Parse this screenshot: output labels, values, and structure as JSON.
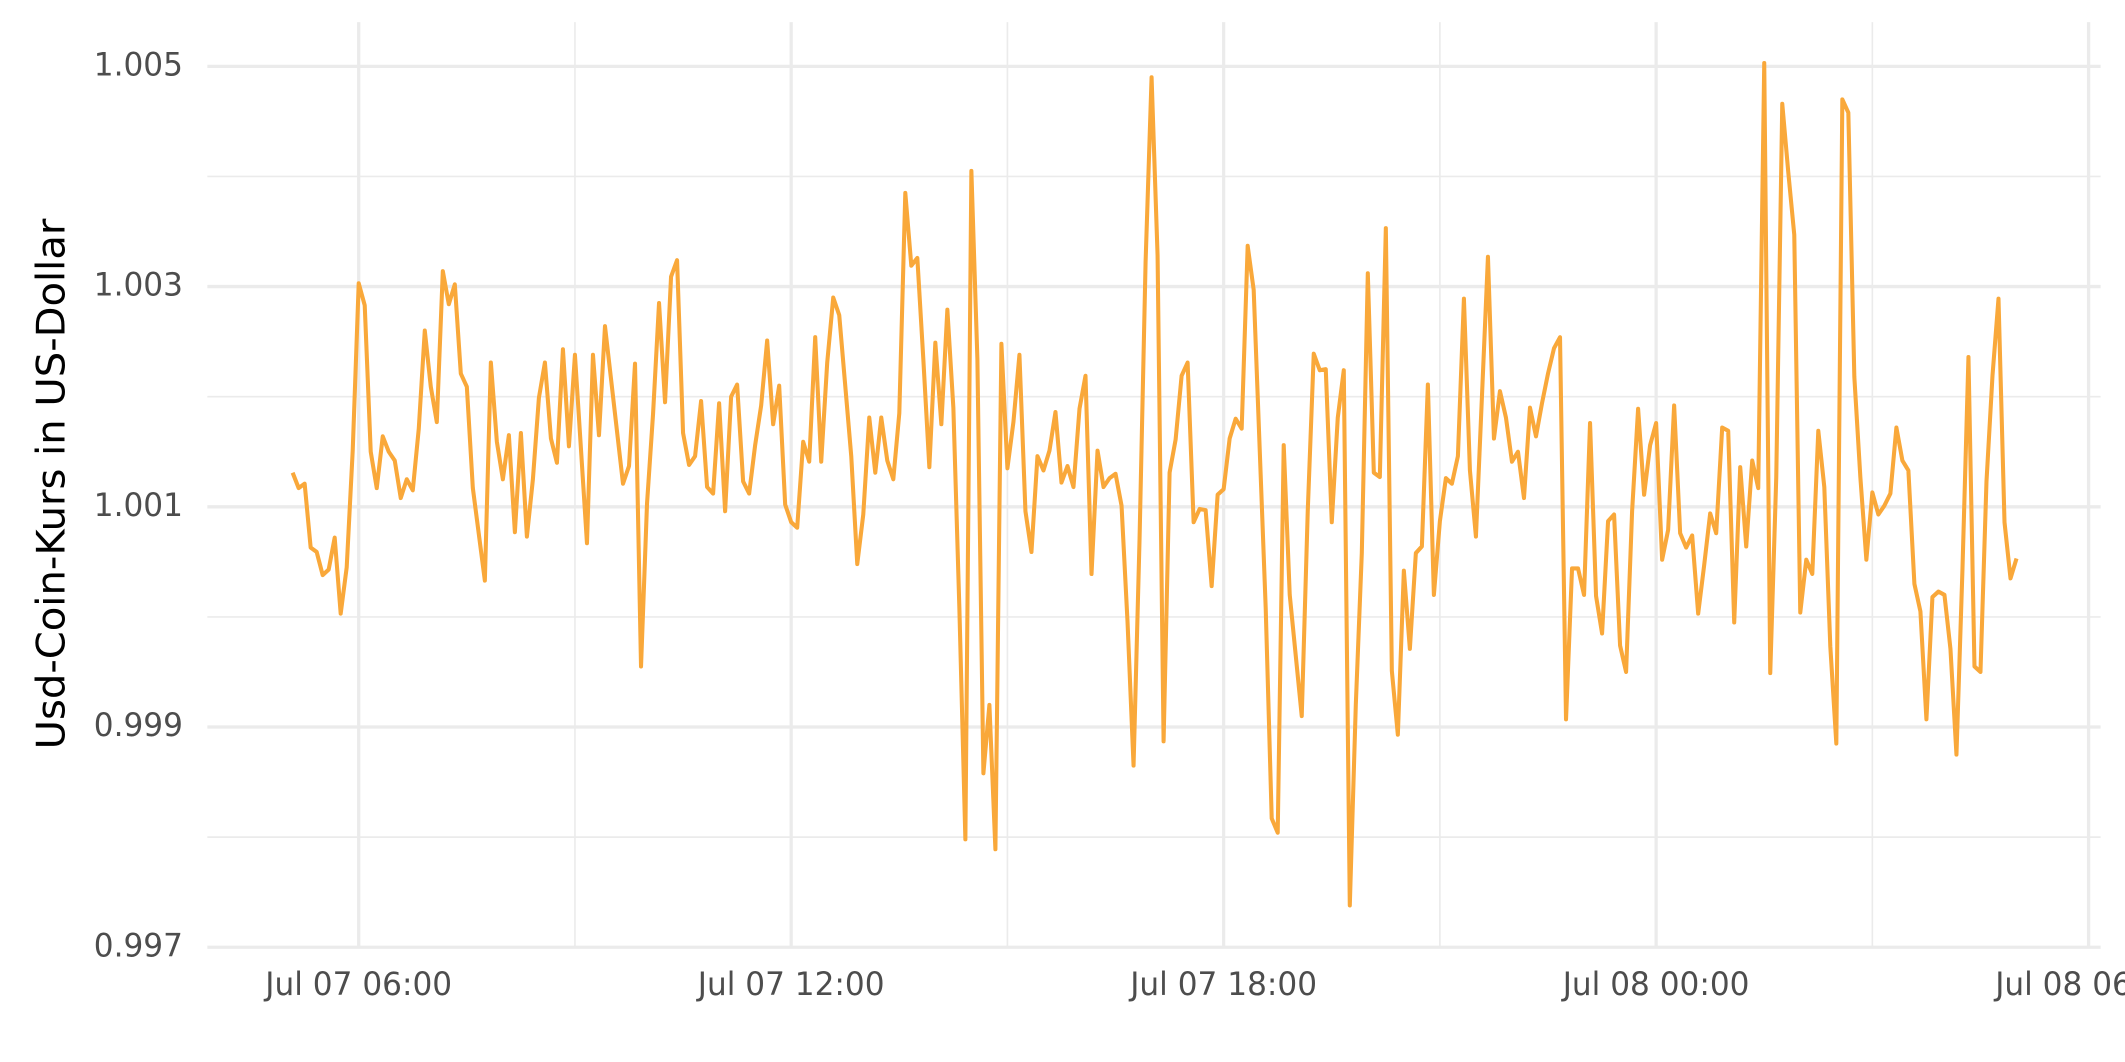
{
  "chart_data": {
    "type": "line",
    "y_label": "Usd-Coin-Kurs in US-Dollar",
    "color": "#f9a83a",
    "grid": true,
    "xlim": [
      "Jul 07 03:54",
      "Jul 08 06:10"
    ],
    "xticks": [
      "Jul 07 06:00",
      "Jul 07 12:00",
      "Jul 07 18:00",
      "Jul 08 00:00",
      "Jul 08 06:00"
    ],
    "ylim": [
      0.997,
      1.005
    ],
    "yticks": [
      0.997,
      0.999,
      1.001,
      1.003,
      1.005
    ],
    "x": [
      "Jul 07 05:05",
      "Jul 07 05:10",
      "Jul 07 05:15",
      "Jul 07 05:20",
      "Jul 07 05:25",
      "Jul 07 05:30",
      "Jul 07 05:35",
      "Jul 07 05:40",
      "Jul 07 05:45",
      "Jul 07 05:50",
      "Jul 07 05:55",
      "Jul 07 06:00",
      "Jul 07 06:05",
      "Jul 07 06:10",
      "Jul 07 06:15",
      "Jul 07 06:20",
      "Jul 07 06:25",
      "Jul 07 06:30",
      "Jul 07 06:35",
      "Jul 07 06:40",
      "Jul 07 06:45",
      "Jul 07 06:50",
      "Jul 07 06:55",
      "Jul 07 07:00",
      "Jul 07 07:05",
      "Jul 07 07:10",
      "Jul 07 07:15",
      "Jul 07 07:20",
      "Jul 07 07:25",
      "Jul 07 07:30",
      "Jul 07 07:35",
      "Jul 07 07:45",
      "Jul 07 07:50",
      "Jul 07 07:55",
      "Jul 07 08:00",
      "Jul 07 08:05",
      "Jul 07 08:10",
      "Jul 07 08:15",
      "Jul 07 08:20",
      "Jul 07 08:25",
      "Jul 07 08:30",
      "Jul 07 08:35",
      "Jul 07 08:40",
      "Jul 07 08:45",
      "Jul 07 08:50",
      "Jul 07 08:55",
      "Jul 07 09:00",
      "Jul 07 09:10",
      "Jul 07 09:15",
      "Jul 07 09:20",
      "Jul 07 09:25",
      "Jul 07 09:40",
      "Jul 07 09:45",
      "Jul 07 09:50",
      "Jul 07 09:55",
      "Jul 07 10:00",
      "Jul 07 10:05",
      "Jul 07 10:10",
      "Jul 07 10:15",
      "Jul 07 10:20",
      "Jul 07 10:25",
      "Jul 07 10:30",
      "Jul 07 10:35",
      "Jul 07 10:40",
      "Jul 07 10:45",
      "Jul 07 10:50",
      "Jul 07 10:55",
      "Jul 07 11:00",
      "Jul 07 11:05",
      "Jul 07 11:10",
      "Jul 07 11:15",
      "Jul 07 11:20",
      "Jul 07 11:25",
      "Jul 07 11:30",
      "Jul 07 11:35",
      "Jul 07 11:40",
      "Jul 07 11:45",
      "Jul 07 11:50",
      "Jul 07 11:55",
      "Jul 07 12:00",
      "Jul 07 12:05",
      "Jul 07 12:10",
      "Jul 07 12:15",
      "Jul 07 12:20",
      "Jul 07 12:25",
      "Jul 07 12:30",
      "Jul 07 12:35",
      "Jul 07 12:40",
      "Jul 07 12:50",
      "Jul 07 12:55",
      "Jul 07 13:00",
      "Jul 07 13:05",
      "Jul 07 13:10",
      "Jul 07 13:15",
      "Jul 07 13:20",
      "Jul 07 13:25",
      "Jul 07 13:30",
      "Jul 07 13:35",
      "Jul 07 13:40",
      "Jul 07 13:45",
      "Jul 07 13:50",
      "Jul 07 13:55",
      "Jul 07 14:00",
      "Jul 07 14:05",
      "Jul 07 14:10",
      "Jul 07 14:15",
      "Jul 07 14:20",
      "Jul 07 14:25",
      "Jul 07 14:30",
      "Jul 07 14:35",
      "Jul 07 14:40",
      "Jul 07 14:45",
      "Jul 07 14:50",
      "Jul 07 14:55",
      "Jul 07 15:00",
      "Jul 07 15:05",
      "Jul 07 15:10",
      "Jul 07 15:15",
      "Jul 07 15:20",
      "Jul 07 15:25",
      "Jul 07 15:30",
      "Jul 07 15:35",
      "Jul 07 15:40",
      "Jul 07 15:45",
      "Jul 07 15:50",
      "Jul 07 15:55",
      "Jul 07 16:00",
      "Jul 07 16:05",
      "Jul 07 16:10",
      "Jul 07 16:15",
      "Jul 07 16:20",
      "Jul 07 16:25",
      "Jul 07 16:30",
      "Jul 07 16:35",
      "Jul 07 16:40",
      "Jul 07 16:45",
      "Jul 07 16:50",
      "Jul 07 16:55",
      "Jul 07 17:00",
      "Jul 07 17:05",
      "Jul 07 17:10",
      "Jul 07 17:15",
      "Jul 07 17:20",
      "Jul 07 17:25",
      "Jul 07 17:30",
      "Jul 07 17:35",
      "Jul 07 17:40",
      "Jul 07 17:45",
      "Jul 07 17:50",
      "Jul 07 17:55",
      "Jul 07 18:00",
      "Jul 07 18:05",
      "Jul 07 18:10",
      "Jul 07 18:15",
      "Jul 07 18:20",
      "Jul 07 18:25",
      "Jul 07 18:35",
      "Jul 07 18:40",
      "Jul 07 18:45",
      "Jul 07 18:50",
      "Jul 07 18:55",
      "Jul 07 19:05",
      "Jul 07 19:10",
      "Jul 07 19:15",
      "Jul 07 19:20",
      "Jul 07 19:25",
      "Jul 07 19:30",
      "Jul 07 19:35",
      "Jul 07 19:40",
      "Jul 07 19:45",
      "Jul 07 19:50",
      "Jul 07 19:55",
      "Jul 07 20:00",
      "Jul 07 20:05",
      "Jul 07 20:10",
      "Jul 07 20:15",
      "Jul 07 20:20",
      "Jul 07 20:25",
      "Jul 07 20:30",
      "Jul 07 20:35",
      "Jul 07 20:40",
      "Jul 07 20:45",
      "Jul 07 20:50",
      "Jul 07 20:55",
      "Jul 07 21:00",
      "Jul 07 21:05",
      "Jul 07 21:10",
      "Jul 07 21:15",
      "Jul 07 21:20",
      "Jul 07 21:25",
      "Jul 07 21:30",
      "Jul 07 21:40",
      "Jul 07 21:45",
      "Jul 07 21:50",
      "Jul 07 21:55",
      "Jul 07 22:00",
      "Jul 07 22:05",
      "Jul 07 22:10",
      "Jul 07 22:15",
      "Jul 07 22:20",
      "Jul 07 22:25",
      "Jul 07 22:30",
      "Jul 07 22:35",
      "Jul 07 22:40",
      "Jul 07 22:45",
      "Jul 07 22:50",
      "Jul 07 22:55",
      "Jul 07 23:00",
      "Jul 07 23:05",
      "Jul 07 23:10",
      "Jul 07 23:15",
      "Jul 07 23:20",
      "Jul 07 23:25",
      "Jul 07 23:30",
      "Jul 07 23:35",
      "Jul 07 23:40",
      "Jul 07 23:45",
      "Jul 07 23:50",
      "Jul 07 23:55",
      "Jul 08 00:00",
      "Jul 08 00:05",
      "Jul 08 00:10",
      "Jul 08 00:15",
      "Jul 08 00:20",
      "Jul 08 00:25",
      "Jul 08 00:30",
      "Jul 08 00:35",
      "Jul 08 00:40",
      "Jul 08 00:45",
      "Jul 08 00:50",
      "Jul 08 00:55",
      "Jul 08 01:00",
      "Jul 08 01:05",
      "Jul 08 01:10",
      "Jul 08 01:15",
      "Jul 08 01:20",
      "Jul 08 01:25",
      "Jul 08 01:30",
      "Jul 08 01:35",
      "Jul 08 01:40",
      "Jul 08 01:45",
      "Jul 08 01:50",
      "Jul 08 01:55",
      "Jul 08 02:00",
      "Jul 08 02:05",
      "Jul 08 02:10",
      "Jul 08 02:15",
      "Jul 08 02:20",
      "Jul 08 02:25",
      "Jul 08 02:30",
      "Jul 08 02:35",
      "Jul 08 02:40",
      "Jul 08 02:45",
      "Jul 08 02:50",
      "Jul 08 02:55",
      "Jul 08 03:00",
      "Jul 08 03:05",
      "Jul 08 03:10",
      "Jul 08 03:15",
      "Jul 08 03:20",
      "Jul 08 03:25",
      "Jul 08 03:30",
      "Jul 08 03:35",
      "Jul 08 03:40",
      "Jul 08 03:45",
      "Jul 08 03:50",
      "Jul 08 03:55",
      "Jul 08 04:00",
      "Jul 08 04:05",
      "Jul 08 04:10",
      "Jul 08 04:15",
      "Jul 08 04:20",
      "Jul 08 04:25",
      "Jul 08 04:30",
      "Jul 08 04:35",
      "Jul 08 04:40",
      "Jul 08 04:45",
      "Jul 08 04:50",
      "Jul 08 04:55",
      "Jul 08 05:00"
    ],
    "values": [
      1.00131,
      1.00117,
      1.00121,
      1.00063,
      1.00059,
      1.00038,
      1.00043,
      1.00072,
      1.00003,
      1.00045,
      1.00151,
      1.00303,
      1.00283,
      1.0015,
      1.00117,
      1.00164,
      1.0015,
      1.00142,
      1.00108,
      1.00125,
      1.00115,
      1.00171,
      1.0026,
      1.00209,
      1.00177,
      1.00314,
      1.00284,
      1.00302,
      1.00221,
      1.00209,
      1.00117,
      1.00033,
      1.00231,
      1.00159,
      1.00125,
      1.00165,
      1.00077,
      1.00167,
      1.00073,
      1.00125,
      1.00199,
      1.00231,
      1.00162,
      1.0014,
      1.00243,
      1.00155,
      1.00238,
      1.00067,
      1.00238,
      1.00165,
      1.00264,
      1.00121,
      1.00137,
      1.0023,
      0.99955,
      1.00103,
      1.00184,
      1.00285,
      1.00195,
      1.00309,
      1.00324,
      1.00167,
      1.00138,
      1.00146,
      1.00196,
      1.00118,
      1.00112,
      1.00194,
      1.00096,
      1.002,
      1.00211,
      1.00123,
      1.00112,
      1.00156,
      1.00192,
      1.00251,
      1.00175,
      1.0021,
      1.00102,
      1.00086,
      1.00081,
      1.00159,
      1.00141,
      1.00254,
      1.00141,
      1.00231,
      1.0029,
      1.00274,
      1.00146,
      1.00048,
      1.00093,
      1.00181,
      1.00131,
      1.00181,
      1.00142,
      1.00125,
      1.00185,
      1.00385,
      1.00319,
      1.00326,
      1.00234,
      1.00136,
      1.00249,
      1.00175,
      1.00279,
      1.0019,
      1.00008,
      0.99798,
      1.00405,
      1.00234,
      0.99858,
      0.9992,
      0.99789,
      1.00248,
      1.00135,
      1.00177,
      1.00238,
      1.00096,
      1.00059,
      1.00146,
      1.00133,
      1.00151,
      1.00186,
      1.00122,
      1.00137,
      1.00118,
      1.00189,
      1.00219,
      1.00039,
      1.00151,
      1.00118,
      1.00126,
      1.0013,
      1.00101,
      0.99995,
      0.99865,
      1.00071,
      1.00322,
      1.0049,
      1.00328,
      0.99887,
      1.00131,
      1.00161,
      1.00219,
      1.00231,
      1.00086,
      1.00098,
      1.00097,
      1.00028,
      1.00111,
      1.00116,
      1.00162,
      1.0018,
      1.00171,
      1.00337,
      1.00297,
      1.00008,
      0.99817,
      0.99804,
      1.00156,
      1.0002,
      0.9991,
      1.00096,
      1.00239,
      1.00224,
      1.00225,
      1.00086,
      1.00181,
      1.00224,
      0.99738,
      0.9992,
      1.00058,
      1.00312,
      1.00131,
      1.00127,
      1.00353,
      0.99951,
      0.99893,
      1.00042,
      0.99971,
      1.00058,
      1.00064,
      1.00211,
      1.0002,
      1.00087,
      1.00126,
      1.00121,
      1.00146,
      1.00289,
      1.00133,
      1.00073,
      1.00327,
      1.00162,
      1.00205,
      1.00181,
      1.00141,
      1.0015,
      1.00108,
      1.0019,
      1.00164,
      1.00194,
      1.00221,
      1.00244,
      1.00254,
      0.99907,
      1.00044,
      1.00044,
      1.0002,
      1.00176,
      1.00019,
      0.99985,
      1.00087,
      1.00093,
      0.99974,
      0.9995,
      1.00096,
      1.00189,
      1.00111,
      1.00156,
      1.00176,
      1.00052,
      1.00079,
      1.00192,
      1.00076,
      1.00063,
      1.00074,
      1.00003,
      1.00047,
      1.00094,
      1.00076,
      1.00172,
      1.00169,
      0.99995,
      1.00136,
      1.00064,
      1.00142,
      1.00117,
      1.00503,
      0.99949,
      1.00127,
      1.00466,
      1.00404,
      1.00347,
      1.00004,
      1.00052,
      1.00039,
      1.00169,
      1.00118,
      0.99973,
      0.99885,
      1.0047,
      1.00458,
      1.00218,
      1.00127,
      1.00052,
      1.00113,
      1.00093,
      1.00101,
      1.00112,
      1.00172,
      1.00142,
      1.00133,
      1.0003,
      1.00005,
      0.99907,
      1.00018,
      1.00023,
      1.0002,
      0.99971,
      0.99875,
      1.00043,
      1.00236,
      0.99955,
      0.9995,
      1.00123,
      1.00219,
      1.00289,
      1.00086,
      1.00035,
      1.00053
    ]
  }
}
